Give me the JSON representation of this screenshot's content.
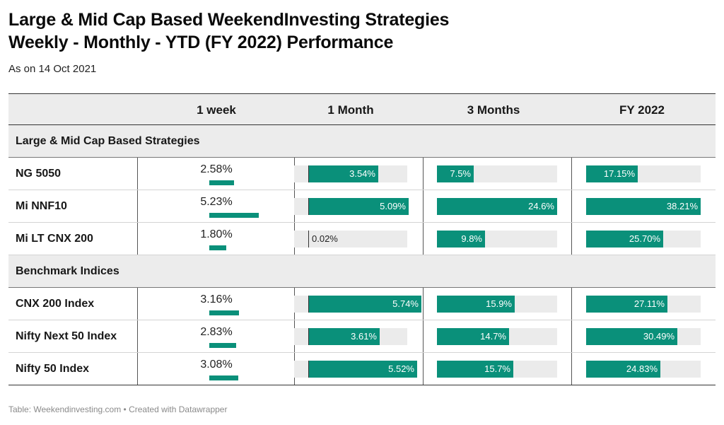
{
  "header": {
    "title_line1": "Large & Mid Cap Based WeekendInvesting Strategies",
    "title_line2": "Weekly - Monthly - YTD (FY 2022) Performance",
    "subtitle": "As on 14 Oct 2021"
  },
  "footer": "Table: Weekendinvesting.com • Created with Datawrapper",
  "colors": {
    "bar": "#0a907a",
    "track": "#ebebeb",
    "header_bg": "#ececec"
  },
  "chart_data": {
    "type": "table",
    "columns": [
      "",
      "1 week",
      "1 Month",
      "3 Months",
      "FY 2022"
    ],
    "column_max": {
      "week": 5.23,
      "month": 5.74,
      "three_months": 24.6,
      "fy": 38.21
    },
    "groups": [
      {
        "label": "Large & Mid Cap Based Strategies",
        "rows": [
          {
            "name": "NG 5050",
            "week": 2.58,
            "week_label": "2.58%",
            "month": 3.54,
            "month_label": "3.54%",
            "three_months": 7.5,
            "three_months_label": "7.5%",
            "fy": 17.15,
            "fy_label": "17.15%"
          },
          {
            "name": "Mi NNF10",
            "week": 5.23,
            "week_label": "5.23%",
            "month": 5.09,
            "month_label": "5.09%",
            "three_months": 24.6,
            "three_months_label": "24.6%",
            "fy": 38.21,
            "fy_label": "38.21%"
          },
          {
            "name": "Mi LT CNX 200",
            "week": 1.8,
            "week_label": "1.80%",
            "month": 0.02,
            "month_label": "0.02%",
            "three_months": 9.8,
            "three_months_label": "9.8%",
            "fy": 25.7,
            "fy_label": "25.70%"
          }
        ]
      },
      {
        "label": "Benchmark Indices",
        "rows": [
          {
            "name": "CNX 200 Index",
            "week": 3.16,
            "week_label": "3.16%",
            "month": 5.74,
            "month_label": "5.74%",
            "three_months": 15.9,
            "three_months_label": "15.9%",
            "fy": 27.11,
            "fy_label": "27.11%"
          },
          {
            "name": "Nifty Next 50 Index",
            "week": 2.83,
            "week_label": "2.83%",
            "month": 3.61,
            "month_label": "3.61%",
            "three_months": 14.7,
            "three_months_label": "14.7%",
            "fy": 30.49,
            "fy_label": "30.49%"
          },
          {
            "name": "Nifty 50 Index",
            "week": 3.08,
            "week_label": "3.08%",
            "month": 5.52,
            "month_label": "5.52%",
            "three_months": 15.7,
            "three_months_label": "15.7%",
            "fy": 24.83,
            "fy_label": "24.83%"
          }
        ]
      }
    ]
  }
}
